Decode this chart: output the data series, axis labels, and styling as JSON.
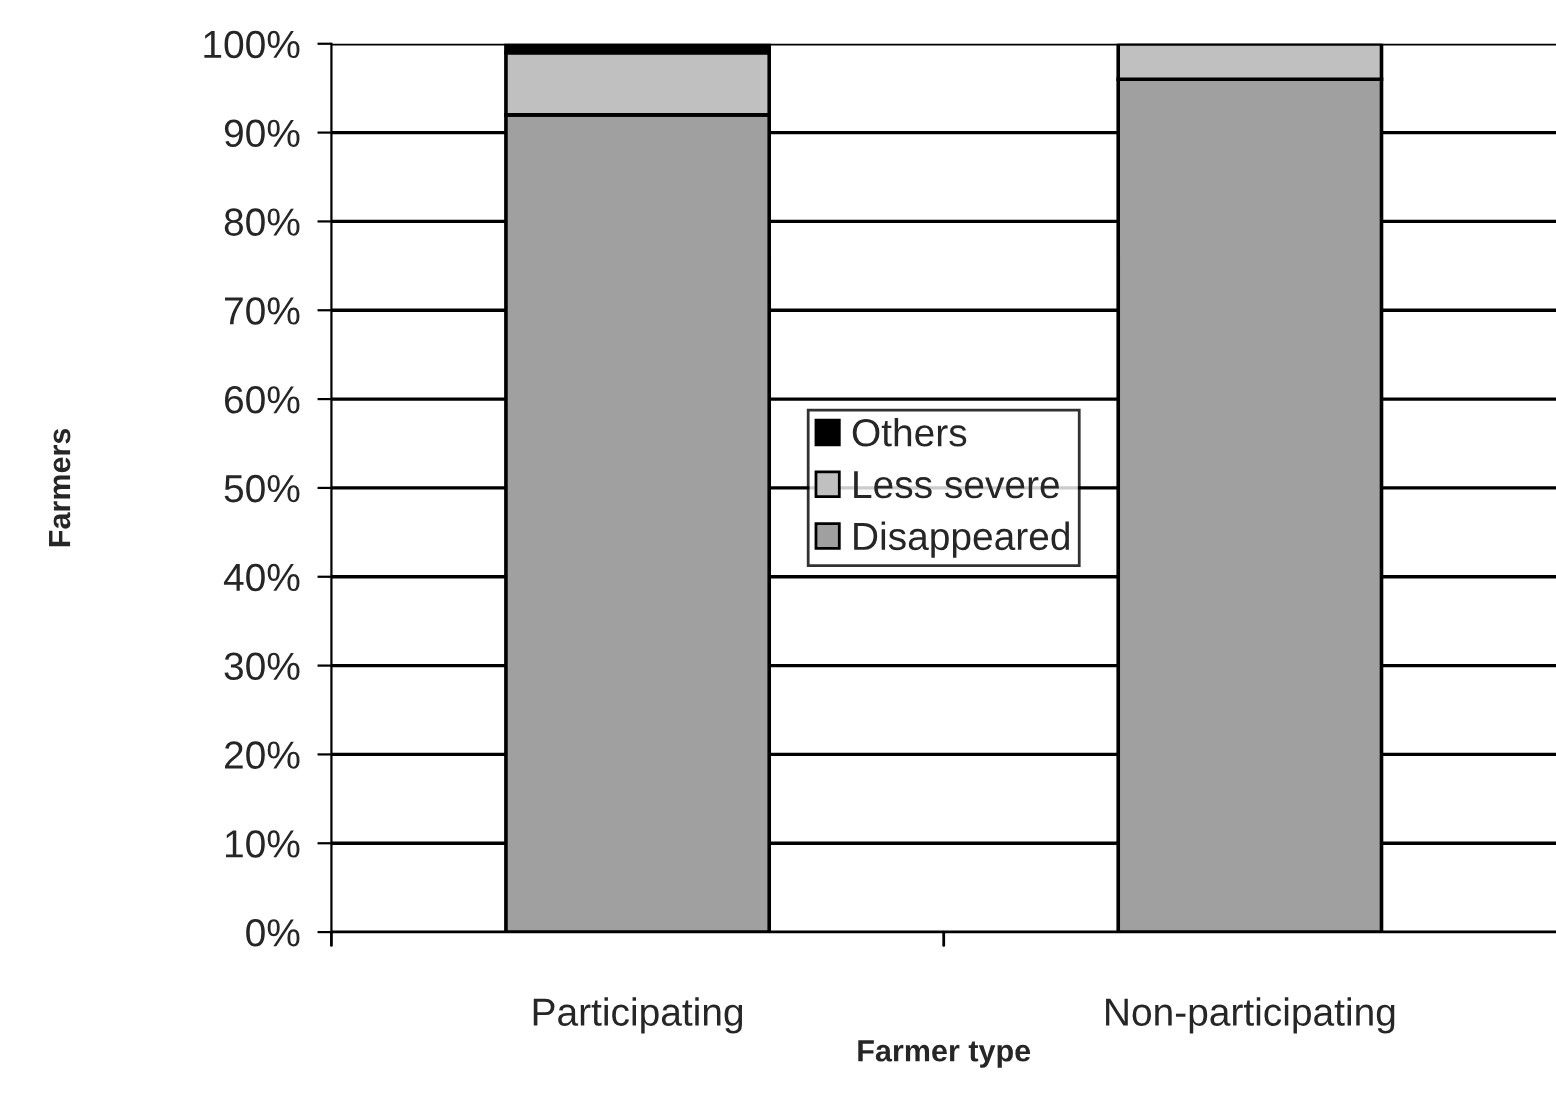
{
  "chart_data": {
    "type": "bar",
    "stacked": true,
    "xlabel": "Farmer type",
    "ylabel": "Farmers",
    "categories": [
      "Participating",
      "Non-participating"
    ],
    "series": [
      {
        "name": "Disappeared",
        "color": "#a0a0a0",
        "values": [
          92,
          96
        ]
      },
      {
        "name": "Less severe",
        "color": "#c0c0c0",
        "values": [
          7,
          4
        ]
      },
      {
        "name": "Others",
        "color": "#000000",
        "values": [
          1,
          0
        ]
      }
    ],
    "ylim": [
      0,
      100
    ],
    "yticks": [
      {
        "value": 0,
        "label": "0%"
      },
      {
        "value": 10,
        "label": "10%"
      },
      {
        "value": 20,
        "label": "20%"
      },
      {
        "value": 30,
        "label": "30%"
      },
      {
        "value": 40,
        "label": "40%"
      },
      {
        "value": 50,
        "label": "50%"
      },
      {
        "value": 60,
        "label": "60%"
      },
      {
        "value": 70,
        "label": "70%"
      },
      {
        "value": 80,
        "label": "80%"
      },
      {
        "value": 90,
        "label": "90%"
      },
      {
        "value": 100,
        "label": "100%"
      }
    ],
    "grid": "y",
    "legend": "center"
  }
}
